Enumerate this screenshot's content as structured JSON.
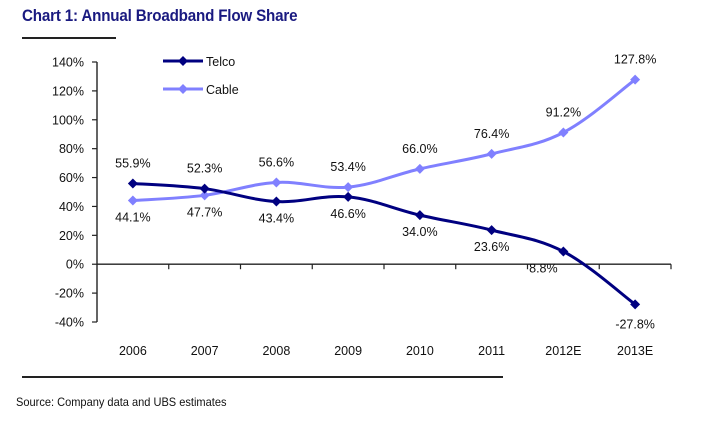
{
  "header": {
    "title": "Chart 1: Annual Broadband Flow Share"
  },
  "footer": {
    "source": "Source: Company data and UBS estimates"
  },
  "chart_data": {
    "type": "line",
    "title": "Chart 1: Annual Broadband Flow Share",
    "xlabel": "",
    "ylabel": "",
    "categories": [
      "2006",
      "2007",
      "2008",
      "2009",
      "2010",
      "2011",
      "2012E",
      "2013E"
    ],
    "ylim": [
      -40,
      140
    ],
    "yticks": [
      -40,
      -20,
      0,
      20,
      40,
      60,
      80,
      100,
      120,
      140
    ],
    "ytick_labels": [
      "-40%",
      "-20%",
      "0%",
      "20%",
      "40%",
      "60%",
      "80%",
      "100%",
      "120%",
      "140%"
    ],
    "grid": false,
    "legend_position": "top-left",
    "series": [
      {
        "name": "Telco",
        "color": "#000080",
        "marker": "diamond",
        "values": [
          55.9,
          52.3,
          43.4,
          46.6,
          34.0,
          23.6,
          8.8,
          -27.8
        ],
        "labels": [
          "55.9%",
          "52.3%",
          "43.4%",
          "46.6%",
          "34.0%",
          "23.6%",
          "8.8%",
          "-27.8%"
        ],
        "label_pos": [
          "above",
          "above",
          "below",
          "below",
          "below",
          "below",
          "below",
          "below"
        ]
      },
      {
        "name": "Cable",
        "color": "#8080ff",
        "marker": "diamond",
        "values": [
          44.1,
          47.7,
          56.6,
          53.4,
          66.0,
          76.4,
          91.2,
          127.8
        ],
        "labels": [
          "44.1%",
          "47.7%",
          "56.6%",
          "53.4%",
          "66.0%",
          "76.4%",
          "91.2%",
          "127.8%"
        ],
        "label_pos": [
          "below",
          "below",
          "above",
          "above",
          "above",
          "above",
          "above",
          "above"
        ]
      }
    ]
  }
}
